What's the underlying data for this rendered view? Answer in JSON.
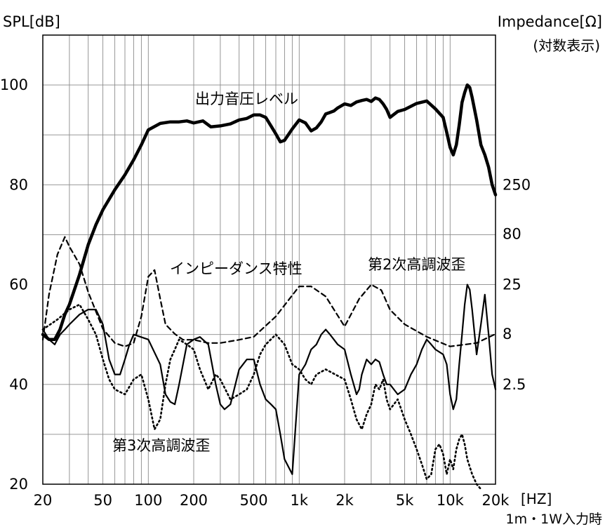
{
  "chart_data": {
    "type": "line",
    "x_scale": "log",
    "xlim": [
      20,
      20000
    ],
    "ylim": [
      20,
      110
    ],
    "y2_scale": "log",
    "y2_ticks": [
      2.5,
      8,
      25,
      80,
      250
    ],
    "x_ticks": [
      20,
      50,
      100,
      200,
      500,
      1000,
      2000,
      5000,
      10000,
      20000
    ],
    "x_tick_labels": [
      "20",
      "50",
      "100",
      "200",
      "500",
      "1k",
      "2k",
      "5k",
      "10k",
      "20k"
    ],
    "y_ticks": [
      20,
      40,
      60,
      80,
      100
    ],
    "ylabel": "SPL[dB]",
    "y2label": "Impedance[Ω]",
    "y2label_sub": "(対数表示)",
    "xunit": "[HZ]",
    "note": "1m・1W入力時",
    "grid": true,
    "series": [
      {
        "name": "出力音圧レベル",
        "style": "thick-solid",
        "x": [
          20,
          22,
          24,
          26,
          28,
          30,
          35,
          40,
          45,
          50,
          60,
          70,
          80,
          90,
          100,
          120,
          140,
          160,
          180,
          200,
          230,
          260,
          300,
          350,
          400,
          450,
          500,
          550,
          600,
          650,
          700,
          750,
          800,
          900,
          1000,
          1100,
          1200,
          1300,
          1400,
          1500,
          1600,
          1700,
          1800,
          2000,
          2200,
          2400,
          2600,
          2800,
          3000,
          3200,
          3400,
          3600,
          3800,
          4000,
          4500,
          5000,
          6000,
          7000,
          8000,
          9000,
          9500,
          10000,
          10500,
          11000,
          11500,
          12000,
          12500,
          13000,
          13500,
          14000,
          15000,
          16000,
          17000,
          18000,
          19000,
          20000
        ],
        "y": [
          50,
          49,
          49,
          51,
          54,
          56,
          62,
          68,
          72,
          75,
          79,
          82,
          85,
          88,
          91,
          92.3,
          92.6,
          92.6,
          92.8,
          92.4,
          92.8,
          91.6,
          91.8,
          92.2,
          93,
          93.3,
          94,
          94,
          93.5,
          91.8,
          90.2,
          88.6,
          88.9,
          91.2,
          93,
          92.4,
          90.8,
          91.4,
          92.6,
          94.2,
          94.5,
          94.8,
          95.4,
          96.2,
          95.9,
          96.6,
          96.9,
          97.1,
          96.7,
          97.4,
          97.1,
          96.2,
          95.1,
          93.5,
          94.7,
          95.1,
          96.3,
          96.8,
          95.2,
          93.5,
          90.5,
          87.5,
          86,
          88,
          92,
          96.5,
          98.5,
          100,
          99.5,
          97.5,
          93,
          88,
          86,
          83.5,
          80,
          78
        ]
      },
      {
        "name": "インピーダンス特性",
        "style": "dashed",
        "x": [
          20,
          22,
          25,
          28,
          30,
          35,
          40,
          50,
          60,
          70,
          80,
          90,
          100,
          110,
          120,
          130,
          150,
          170,
          200,
          250,
          300,
          400,
          500,
          700,
          1000,
          1200,
          1500,
          2000,
          2500,
          3000,
          3500,
          4000,
          5000,
          7000,
          10000,
          15000,
          20000
        ],
        "y": [
          7,
          20,
          50,
          75,
          60,
          40,
          21,
          9,
          6.5,
          6,
          6.5,
          12,
          30,
          35,
          18,
          10,
          8,
          7,
          7,
          6.5,
          6.5,
          7,
          7.5,
          12,
          24,
          24,
          19,
          9.5,
          18,
          25,
          22,
          14,
          10,
          7.5,
          6,
          6.5,
          8
        ]
      },
      {
        "name": "第2次高調波歪",
        "style": "thin-solid",
        "x": [
          20,
          22,
          24,
          26,
          28,
          30,
          35,
          40,
          45,
          50,
          55,
          60,
          65,
          70,
          75,
          80,
          100,
          120,
          130,
          140,
          150,
          160,
          180,
          200,
          220,
          250,
          280,
          300,
          320,
          350,
          400,
          450,
          500,
          550,
          600,
          650,
          700,
          750,
          800,
          900,
          1000,
          1100,
          1200,
          1300,
          1400,
          1500,
          1600,
          1800,
          2000,
          2200,
          2400,
          2500,
          2600,
          2800,
          3000,
          3200,
          3400,
          3600,
          3800,
          4000,
          4500,
          5000,
          5500,
          6000,
          6500,
          7000,
          7500,
          8000,
          9000,
          9500,
          10000,
          10500,
          11000,
          11500,
          12000,
          12500,
          13000,
          13500,
          14000,
          15000,
          16000,
          17000,
          18000,
          19000,
          20000
        ],
        "y": [
          51,
          49,
          48,
          50,
          51,
          52,
          54,
          55,
          55,
          52,
          45,
          42,
          42,
          45,
          48,
          50,
          49,
          44,
          38,
          36.5,
          36,
          40,
          48,
          49,
          49.5,
          48,
          40,
          36,
          35,
          36,
          43,
          45,
          45,
          40,
          37,
          36,
          35,
          30,
          25,
          22,
          42,
          44,
          47,
          48,
          50,
          51,
          50,
          48,
          47,
          42,
          38,
          39,
          42,
          45,
          44,
          45,
          44.5,
          42,
          40,
          40,
          38,
          39,
          42,
          44,
          47,
          49,
          48,
          47,
          46,
          44,
          38,
          35,
          37,
          44,
          50,
          56,
          60,
          59,
          55,
          46,
          52,
          58,
          50,
          42,
          39
        ]
      },
      {
        "name": "第3次高調波歪",
        "style": "dotted",
        "x": [
          20,
          25,
          30,
          35,
          40,
          45,
          50,
          55,
          60,
          70,
          80,
          90,
          100,
          110,
          120,
          130,
          140,
          150,
          160,
          180,
          200,
          220,
          250,
          280,
          300,
          350,
          400,
          450,
          500,
          550,
          600,
          700,
          800,
          900,
          1000,
          1100,
          1200,
          1300,
          1500,
          2000,
          2200,
          2400,
          2600,
          2800,
          3000,
          3200,
          3400,
          3600,
          3800,
          4000,
          4500,
          5000,
          5500,
          6000,
          6500,
          7000,
          7500,
          8000,
          8500,
          9000,
          9500,
          10000,
          10500,
          11000,
          11500,
          12000,
          12500,
          13000,
          14000,
          15000,
          16000
        ],
        "y": [
          51,
          53,
          55,
          56,
          53,
          50,
          45,
          41,
          39,
          38,
          41,
          42,
          37,
          31,
          33,
          40,
          45,
          47,
          49,
          48,
          47,
          43,
          39,
          42,
          41,
          37,
          38,
          39,
          42,
          46,
          48,
          50,
          48,
          44,
          43,
          41,
          40,
          42,
          43,
          41,
          37,
          33,
          31,
          34,
          36,
          40,
          39,
          41,
          37,
          35,
          37,
          33,
          30,
          27,
          24,
          21,
          22,
          27,
          28,
          26,
          22,
          25,
          23,
          27,
          29,
          30,
          28,
          25,
          22,
          20,
          19
        ]
      }
    ],
    "annotations": [
      "出力音圧レベル",
      "インピーダンス特性",
      "第2次高調波歪",
      "第3次高調波歪"
    ]
  }
}
